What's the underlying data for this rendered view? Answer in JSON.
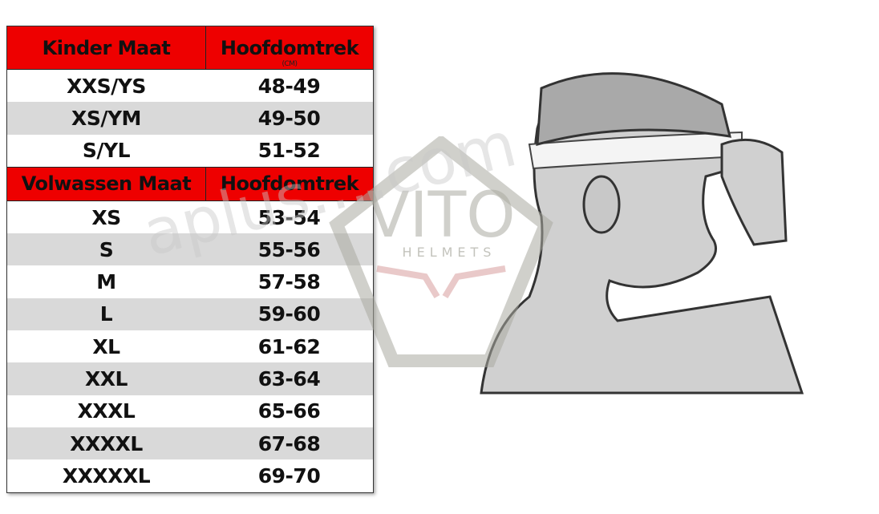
{
  "kids_section": {
    "size_header": "Kinder Maat",
    "circ_header": "Hoofdomtrek",
    "unit": "(CM)",
    "rows": [
      {
        "size": "XXS/YS",
        "circ": "48-49"
      },
      {
        "size": "XS/YM",
        "circ": "49-50"
      },
      {
        "size": "S/YL",
        "circ": "51-52"
      }
    ]
  },
  "adult_section": {
    "size_header": "Volwassen Maat",
    "circ_header": "Hoofdomtrek",
    "rows": [
      {
        "size": "XS",
        "circ": "53-54"
      },
      {
        "size": "S",
        "circ": "55-56"
      },
      {
        "size": "M",
        "circ": "57-58"
      },
      {
        "size": "L",
        "circ": "59-60"
      },
      {
        "size": "XL",
        "circ": "61-62"
      },
      {
        "size": "XXL",
        "circ": "63-64"
      },
      {
        "size": "XXXL",
        "circ": "65-66"
      },
      {
        "size": "XXXXL",
        "circ": "67-68"
      },
      {
        "size": "XXXXXL",
        "circ": "69-70"
      }
    ]
  },
  "watermark": {
    "logo_text": "VITO",
    "logo_subtext": "HELMETS",
    "site_text": "aplus....com"
  },
  "colors": {
    "header_red": "#ee0000",
    "stripe_gray": "#d9d9d9"
  }
}
